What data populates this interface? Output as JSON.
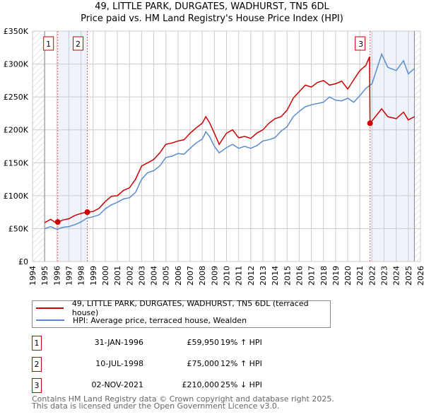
{
  "chart_data": {
    "type": "line",
    "title": "49, LITTLE PARK, DURGATES, WADHURST, TN5 6DL",
    "subtitle": "Price paid vs. HM Land Registry's House Price Index (HPI)",
    "xlim": [
      1994,
      2026
    ],
    "ylim": [
      0,
      350000
    ],
    "x_ticks": [
      "1994",
      "1995",
      "1996",
      "1997",
      "1998",
      "1999",
      "2000",
      "2001",
      "2002",
      "2003",
      "2004",
      "2005",
      "2006",
      "2007",
      "2008",
      "2009",
      "2010",
      "2011",
      "2012",
      "2013",
      "2014",
      "2015",
      "2016",
      "2017",
      "2018",
      "2019",
      "2020",
      "2021",
      "2022",
      "2023",
      "2024",
      "2025",
      "2026"
    ],
    "y_ticks": [
      {
        "v": 0,
        "label": "£0"
      },
      {
        "v": 50000,
        "label": "£50K"
      },
      {
        "v": 100000,
        "label": "£100K"
      },
      {
        "v": 150000,
        "label": "£150K"
      },
      {
        "v": 200000,
        "label": "£200K"
      },
      {
        "v": 250000,
        "label": "£250K"
      },
      {
        "v": 300000,
        "label": "£300K"
      },
      {
        "v": 350000,
        "label": "£350K"
      }
    ],
    "grid": true,
    "legend_placement": "below",
    "series": [
      {
        "name": "49, LITTLE PARK, DURGATES, WADHURST, TN5 6DL (terraced house)",
        "color": "#cc0000",
        "x": [
          1995,
          1995.5,
          1996,
          1996.1,
          1996.5,
          1997,
          1997.5,
          1998,
          1998.5,
          1999,
          1999.5,
          2000,
          2000.5,
          2001,
          2001.5,
          2002,
          2002.5,
          2003,
          2003.5,
          2004,
          2004.5,
          2005,
          2005.5,
          2006,
          2006.5,
          2007,
          2007.5,
          2008,
          2008.3,
          2008.6,
          2009,
          2009.4,
          2010,
          2010.5,
          2011,
          2011.5,
          2012,
          2012.5,
          2013,
          2013.5,
          2014,
          2014.5,
          2015,
          2015.5,
          2016,
          2016.5,
          2017,
          2017.5,
          2018,
          2018.5,
          2019,
          2019.5,
          2020,
          2020.5,
          2021,
          2021.5,
          2021.8,
          2021.84,
          2022.2,
          2022.8,
          2023.3,
          2024,
          2024.6,
          2025,
          2025.5
        ],
        "values": [
          59000,
          64000,
          58000,
          59950,
          63000,
          65000,
          70000,
          73000,
          75000,
          76000,
          81000,
          91000,
          99000,
          100000,
          108000,
          112000,
          125000,
          145000,
          150000,
          155000,
          165000,
          178000,
          180000,
          183000,
          185000,
          195000,
          203000,
          210000,
          220000,
          211000,
          195000,
          178000,
          195000,
          200000,
          188000,
          190000,
          187000,
          195000,
          200000,
          210000,
          217000,
          220000,
          230000,
          248000,
          258000,
          268000,
          265000,
          272000,
          275000,
          268000,
          270000,
          274000,
          262000,
          276000,
          290000,
          298000,
          311000,
          210000,
          218000,
          232000,
          220000,
          217000,
          227000,
          215000,
          220000
        ]
      },
      {
        "name": "HPI: Average price, terraced house, Wealden",
        "color": "#5b8ccc",
        "x": [
          1995,
          1995.5,
          1996,
          1996.5,
          1997,
          1997.5,
          1998,
          1998.5,
          1999,
          1999.5,
          2000,
          2000.5,
          2001,
          2001.5,
          2002,
          2002.5,
          2003,
          2003.5,
          2004,
          2004.5,
          2005,
          2005.5,
          2006,
          2006.5,
          2007,
          2007.5,
          2008,
          2008.3,
          2008.6,
          2009,
          2009.4,
          2010,
          2010.5,
          2011,
          2011.5,
          2012,
          2012.5,
          2013,
          2013.5,
          2014,
          2014.5,
          2015,
          2015.5,
          2016,
          2016.5,
          2017,
          2017.5,
          2018,
          2018.5,
          2019,
          2019.5,
          2020,
          2020.5,
          2021,
          2021.5,
          2022,
          2022.8,
          2023.3,
          2024,
          2024.6,
          2025,
          2025.5
        ],
        "values": [
          50000,
          53000,
          49000,
          52000,
          53000,
          56000,
          60000,
          66000,
          68000,
          71000,
          80000,
          86000,
          90000,
          95000,
          97000,
          105000,
          125000,
          135000,
          138000,
          145000,
          158000,
          160000,
          164000,
          163000,
          172000,
          180000,
          186000,
          197000,
          190000,
          175000,
          165000,
          173000,
          178000,
          172000,
          175000,
          172000,
          176000,
          183000,
          185000,
          188000,
          198000,
          205000,
          220000,
          228000,
          235000,
          238000,
          240000,
          242000,
          250000,
          245000,
          244000,
          248000,
          242000,
          252000,
          263000,
          270000,
          315000,
          295000,
          290000,
          305000,
          285000,
          293000
        ]
      }
    ],
    "sales": [
      {
        "label": "1",
        "x": 1996.08,
        "value": 59950
      },
      {
        "label": "2",
        "x": 1998.52,
        "value": 75000
      },
      {
        "label": "3",
        "x": 2021.84,
        "value": 210000
      }
    ],
    "shaded_ranges": [
      [
        1996.08,
        1998.52
      ],
      [
        2021.84,
        2025.5
      ]
    ],
    "data_range": [
      1995,
      2025.5
    ]
  },
  "legend": {
    "property": "49, LITTLE PARK, DURGATES, WADHURST, TN5 6DL (terraced house)",
    "hpi": "HPI: Average price, terraced house, Wealden"
  },
  "transactions": [
    {
      "num": "1",
      "date": "31-JAN-1996",
      "price": "£59,950",
      "hpi": "19% ↑ HPI"
    },
    {
      "num": "2",
      "date": "10-JUL-1998",
      "price": "£75,000",
      "hpi": "12% ↑ HPI"
    },
    {
      "num": "3",
      "date": "02-NOV-2021",
      "price": "£210,000",
      "hpi": "25% ↓ HPI"
    }
  ],
  "footer": {
    "line1": "Contains HM Land Registry data © Crown copyright and database right 2025.",
    "line2": "This data is licensed under the Open Government Licence v3.0."
  }
}
